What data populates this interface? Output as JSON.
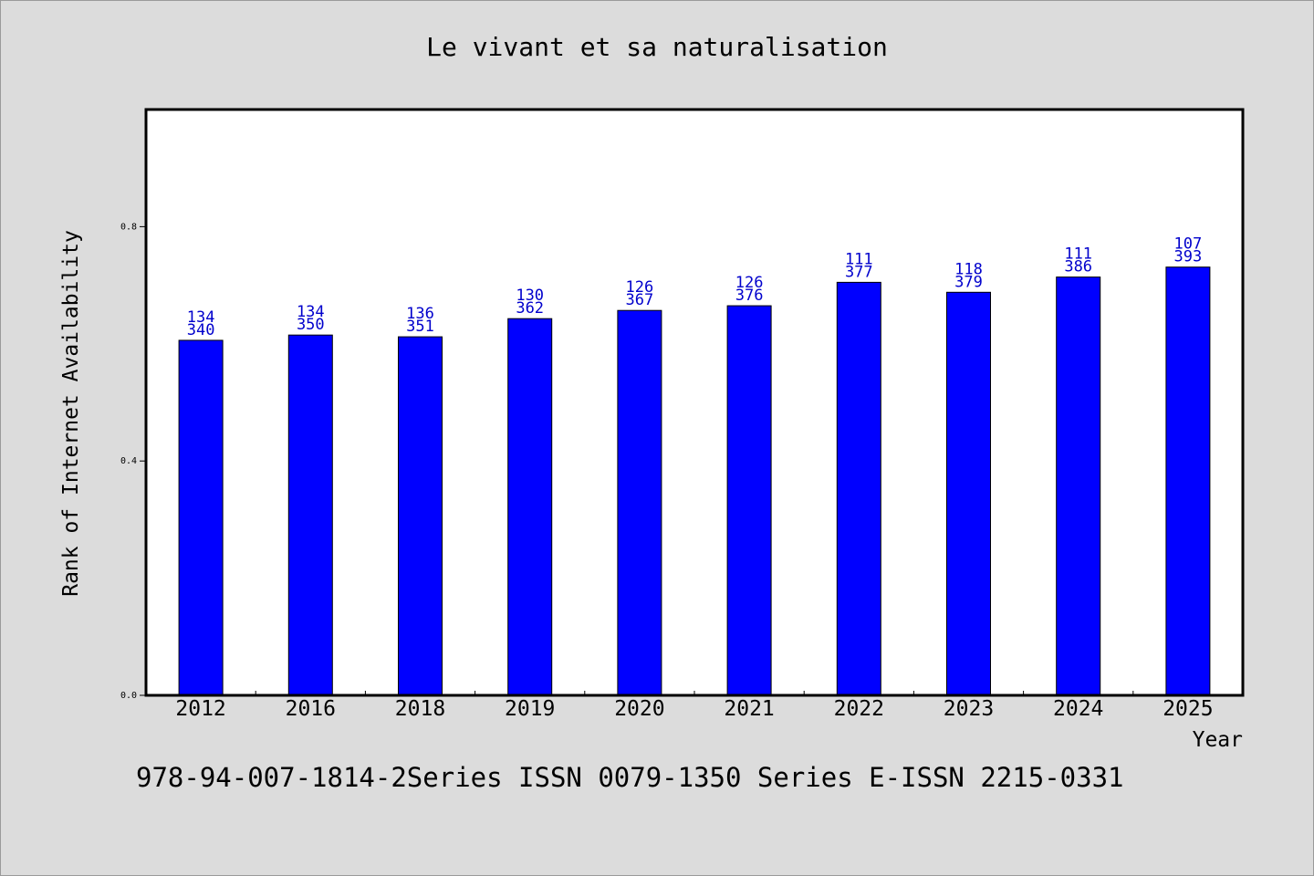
{
  "chart_data": {
    "type": "bar",
    "title": "Le vivant et sa naturalisation",
    "xlabel": "Year",
    "ylabel": "Rank of Internet Availability",
    "categories": [
      "2012",
      "2016",
      "2018",
      "2019",
      "2020",
      "2021",
      "2022",
      "2023",
      "2024",
      "2025"
    ],
    "series": [
      {
        "values": [
          0.606,
          0.615,
          0.612,
          0.643,
          0.657,
          0.665,
          0.705,
          0.688,
          0.714,
          0.731
        ]
      }
    ],
    "bar_labels_top": [
      "134",
      "134",
      "136",
      "130",
      "126",
      "126",
      "111",
      "118",
      "111",
      "107"
    ],
    "bar_labels_bottom": [
      "340",
      "350",
      "351",
      "362",
      "367",
      "376",
      "377",
      "379",
      "386",
      "393"
    ],
    "yticks": [
      0.0,
      0.4,
      0.8
    ],
    "ytick_labels": [
      "0.0",
      "0.4",
      "0.8"
    ],
    "ylim": [
      0,
      1.0
    ],
    "grid": false,
    "colors": {
      "bar": "#0000ff",
      "label": "#0000cc",
      "axis": "#000000",
      "background": "#dcdcdc",
      "plot_background": "#ffffff"
    }
  },
  "footer": {
    "text": "978-94-007-1814-2Series ISSN 0079-1350 Series E-ISSN 2215-0331"
  }
}
